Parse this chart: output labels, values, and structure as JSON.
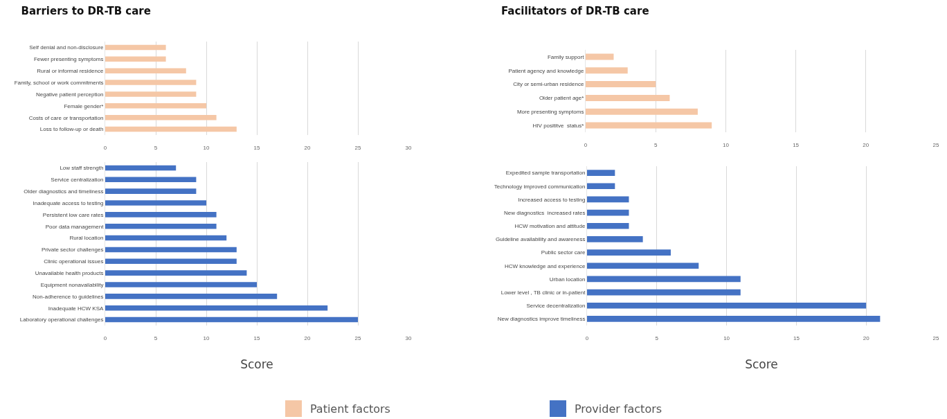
{
  "chart_data": [
    {
      "type": "bar",
      "title": "Barriers to DR-TB care",
      "orientation": "horizontal",
      "categories": [
        "Self denial and non-disclosure",
        "Fewer presenting symptoms",
        "Rural or informal residence",
        "Family, school or work commitments",
        "Negative patient perception",
        "Female gender*",
        "Costs of care or transportation",
        "Loss to follow-up or death"
      ],
      "series": [
        {
          "name": "Patient factors",
          "color": "#f5c7a6",
          "values": [
            6,
            6,
            8,
            9,
            9,
            10,
            11,
            13
          ]
        }
      ],
      "xlim": [
        0,
        30
      ],
      "xticks": [
        0,
        5,
        10,
        15,
        20,
        25,
        30
      ],
      "grid": "x",
      "legend": "bottom"
    },
    {
      "type": "bar",
      "xlabel": "Score",
      "orientation": "horizontal",
      "categories": [
        "Low staff strength",
        "Service centralization",
        "Older diagnostics and timeliness",
        "Inadequate access to testing",
        "Persistent low care rates",
        "Poor data management",
        "Rural location",
        "Private sector challenges",
        "Clinic operational issues",
        "Unavailable health products",
        "Equipment nonavailability",
        "Non-adherence to guidelines",
        "Inadequate HCW KSA",
        "Laboratory operational challenges"
      ],
      "series": [
        {
          "name": "Provider factors",
          "color": "#4472c4",
          "values": [
            7,
            9,
            9,
            10,
            11,
            11,
            12,
            13,
            13,
            14,
            15,
            17,
            22,
            25
          ]
        }
      ],
      "xlim": [
        0,
        30
      ],
      "xticks": [
        0,
        5,
        10,
        15,
        20,
        25,
        30
      ],
      "grid": "x",
      "legend": "bottom"
    },
    {
      "type": "bar",
      "title": "Facilitators of DR-TB care",
      "orientation": "horizontal",
      "categories": [
        "Family support",
        "Patient agency and knowledge",
        "City or semi-urban residence",
        "Older patient age*",
        "More presenting symptoms",
        "HIV posititve  status*"
      ],
      "series": [
        {
          "color": "#f5c7a6",
          "values": [
            2,
            3,
            5,
            6,
            8,
            9
          ]
        }
      ],
      "xlim": [
        0,
        25
      ],
      "xticks": [
        0,
        5,
        10,
        15,
        20,
        25
      ],
      "grid": "x"
    },
    {
      "type": "bar",
      "xlabel": "Score",
      "orientation": "horizontal",
      "categories": [
        "Expedited sample transportation",
        "Technology improved communication",
        "Increased access to testing",
        "New diagnostics  increased rates",
        "HCW motivation and attitude",
        "Guideline availability and awareness",
        "Public sector care",
        "HCW knowledge and experience",
        "Urban location",
        "Lower level , TB clinic or in-patient",
        "Service decentralization",
        "New diagnostics improve timeliness"
      ],
      "series": [
        {
          "color": "#4472c4",
          "values": [
            2,
            2,
            3,
            3,
            3,
            4,
            6,
            8,
            11,
            11,
            20,
            21
          ]
        }
      ],
      "xlim": [
        0,
        25
      ],
      "xticks": [
        0,
        5,
        10,
        15,
        20,
        25
      ],
      "grid": "x"
    }
  ]
}
